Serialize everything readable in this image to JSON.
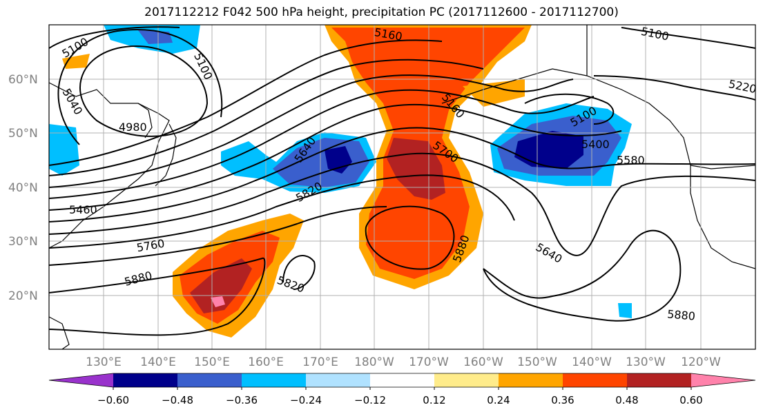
{
  "title": "2017112212 F042 500 hPa height, precipitation PC (2017112600 - 2017112700)",
  "lat_labels": [
    "60°N",
    "50°N",
    "40°N",
    "30°N",
    "20°N"
  ],
  "lon_labels": [
    "130°E",
    "140°E",
    "150°E",
    "160°E",
    "170°E",
    "180°W",
    "170°W",
    "160°W",
    "150°W",
    "140°W",
    "130°W",
    "120°W"
  ],
  "contour_labels": [
    "5100",
    "5100",
    "5040",
    "4980",
    "5160",
    "5100",
    "5220",
    "5100",
    "5640",
    "5820",
    "5700",
    "5400",
    "5580",
    "5460",
    "5760",
    "5880",
    "5820",
    "5880",
    "5640",
    "5880",
    "5160"
  ],
  "colorbar": {
    "ticks": [
      "−0.60",
      "−0.48",
      "−0.36",
      "−0.24",
      "−0.12",
      "0.12",
      "0.24",
      "0.36",
      "0.48",
      "0.60"
    ],
    "colors": [
      "#9932cc",
      "#00008b",
      "#3a5fcd",
      "#00bfff",
      "#b0e2ff",
      "#ffffff",
      "#ffec8b",
      "#ffa500",
      "#ff4500",
      "#b22222",
      "#ff82ab"
    ]
  }
}
